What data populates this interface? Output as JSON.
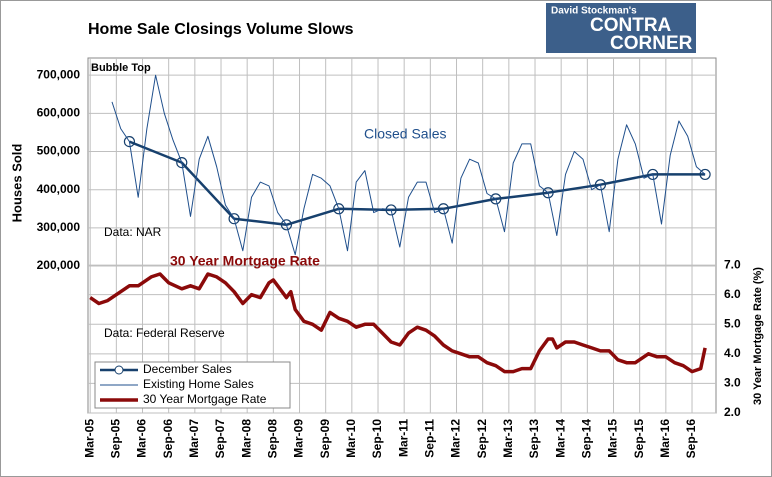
{
  "chart_data": {
    "type": "line",
    "title": "Home Sale Closings Volume Slows",
    "logo": [
      "David Stockman's",
      "CONTRA",
      "CORNER"
    ],
    "ylabel": "Houses Sold",
    "y2label": "30 Year Mortgage Rate (%)",
    "annotations": [
      "Bubble Top",
      "Closed Sales",
      "30 Year Mortgage Rate",
      "Data: NAR",
      "Data: Federal Reserve"
    ],
    "xlim": [
      -0.5,
      143.5
    ],
    "xticks": [
      {
        "value": 0,
        "label": "Mar-05"
      },
      {
        "value": 6,
        "label": "Sep-05"
      },
      {
        "value": 12,
        "label": "Mar-06"
      },
      {
        "value": 18,
        "label": "Sep-06"
      },
      {
        "value": 24,
        "label": "Mar-07"
      },
      {
        "value": 30,
        "label": "Sep-07"
      },
      {
        "value": 36,
        "label": "Mar-08"
      },
      {
        "value": 42,
        "label": "Sep-08"
      },
      {
        "value": 48,
        "label": "Mar-09"
      },
      {
        "value": 54,
        "label": "Sep-09"
      },
      {
        "value": 60,
        "label": "Mar-10"
      },
      {
        "value": 66,
        "label": "Sep-10"
      },
      {
        "value": 72,
        "label": "Mar-11"
      },
      {
        "value": 78,
        "label": "Sep-11"
      },
      {
        "value": 84,
        "label": "Mar-12"
      },
      {
        "value": 90,
        "label": "Sep-12"
      },
      {
        "value": 96,
        "label": "Mar-13"
      },
      {
        "value": 102,
        "label": "Sep-13"
      },
      {
        "value": 108,
        "label": "Mar-14"
      },
      {
        "value": 114,
        "label": "Sep-14"
      },
      {
        "value": 120,
        "label": "Mar-15"
      },
      {
        "value": 126,
        "label": "Sep-15"
      },
      {
        "value": 132,
        "label": "Mar-16"
      },
      {
        "value": 138,
        "label": "Sep-16"
      }
    ],
    "ylim": [
      -185000,
      745000
    ],
    "yticks": [
      {
        "value": 200000,
        "label": "200,000"
      },
      {
        "value": 300000,
        "label": "300,000"
      },
      {
        "value": 400000,
        "label": "400,000"
      },
      {
        "value": 500000,
        "label": "500,000"
      },
      {
        "value": 600000,
        "label": "600,000"
      },
      {
        "value": 700000,
        "label": "700,000"
      }
    ],
    "y2lim": [
      2,
      14
    ],
    "y2ticks": [
      {
        "value": 2,
        "label": "2.0"
      },
      {
        "value": 3,
        "label": "3.0"
      },
      {
        "value": 4,
        "label": "4.0"
      },
      {
        "value": 5,
        "label": "5.0"
      },
      {
        "value": 6,
        "label": "6.0"
      },
      {
        "value": 7,
        "label": "7.0"
      }
    ],
    "grid": true,
    "series": [
      {
        "name": "December Sales",
        "color": "#17406d",
        "marker": "circle",
        "x": [
          9,
          21,
          33,
          45,
          57,
          69,
          81,
          93,
          105,
          117,
          129,
          141
        ],
        "values": [
          526000,
          471000,
          324000,
          308000,
          350000,
          347000,
          350000,
          376000,
          392000,
          413000,
          440000,
          440000
        ]
      },
      {
        "name": "Existing Home Sales",
        "color": "#1f4f8c",
        "x": [
          5,
          7,
          9,
          11,
          13,
          15,
          17,
          19,
          21,
          23,
          25,
          27,
          29,
          31,
          33,
          35,
          37,
          39,
          41,
          43,
          45,
          47,
          49,
          51,
          53,
          55,
          57,
          59,
          61,
          63,
          65,
          67,
          69,
          71,
          73,
          75,
          77,
          79,
          81,
          83,
          85,
          87,
          89,
          91,
          93,
          95,
          97,
          99,
          101,
          103,
          105,
          107,
          109,
          111,
          113,
          115,
          117,
          119,
          121,
          123,
          125,
          127,
          129,
          131,
          133,
          135,
          137,
          139,
          141
        ],
        "values": [
          630000,
          560000,
          526000,
          380000,
          560000,
          700000,
          600000,
          530000,
          471000,
          330000,
          480000,
          540000,
          460000,
          360000,
          324000,
          240000,
          380000,
          420000,
          410000,
          340000,
          308000,
          230000,
          350000,
          440000,
          430000,
          410000,
          350000,
          240000,
          420000,
          450000,
          340000,
          350000,
          347000,
          250000,
          380000,
          420000,
          420000,
          340000,
          350000,
          260000,
          430000,
          480000,
          470000,
          390000,
          376000,
          290000,
          470000,
          520000,
          520000,
          410000,
          392000,
          280000,
          440000,
          500000,
          480000,
          400000,
          413000,
          290000,
          480000,
          570000,
          520000,
          430000,
          440000,
          310000,
          490000,
          580000,
          540000,
          460000,
          440000
        ]
      },
      {
        "name": "30 Year Mortgage Rate",
        "color": "#8b0a0a",
        "axis": "y2",
        "x": [
          0,
          2,
          4,
          7,
          9,
          11,
          14,
          16,
          18,
          21,
          23,
          25,
          27,
          29,
          31,
          33,
          35,
          37,
          39,
          41,
          42,
          43,
          45,
          46,
          47,
          49,
          51,
          53,
          55,
          57,
          59,
          61,
          63,
          65,
          67,
          69,
          71,
          73,
          75,
          77,
          79,
          81,
          83,
          85,
          87,
          89,
          91,
          93,
          95,
          97,
          99,
          101,
          103,
          105,
          106,
          107,
          109,
          111,
          113,
          115,
          117,
          119,
          121,
          123,
          125,
          127,
          128,
          130,
          132,
          134,
          136,
          138,
          140,
          141
        ],
        "values": [
          5.9,
          5.7,
          5.8,
          6.1,
          6.3,
          6.3,
          6.6,
          6.7,
          6.4,
          6.2,
          6.3,
          6.2,
          6.7,
          6.6,
          6.4,
          6.1,
          5.7,
          6.0,
          5.9,
          6.4,
          6.5,
          6.3,
          5.9,
          6.1,
          5.5,
          5.1,
          5.0,
          4.8,
          5.4,
          5.2,
          5.1,
          4.9,
          5.0,
          5.0,
          4.7,
          4.4,
          4.3,
          4.7,
          4.9,
          4.8,
          4.6,
          4.3,
          4.1,
          4.0,
          3.9,
          3.9,
          3.7,
          3.6,
          3.4,
          3.4,
          3.5,
          3.5,
          4.1,
          4.5,
          4.5,
          4.2,
          4.4,
          4.4,
          4.3,
          4.2,
          4.1,
          4.1,
          3.8,
          3.7,
          3.7,
          3.9,
          4.0,
          3.9,
          3.9,
          3.7,
          3.6,
          3.4,
          3.5,
          4.2
        ]
      }
    ]
  }
}
